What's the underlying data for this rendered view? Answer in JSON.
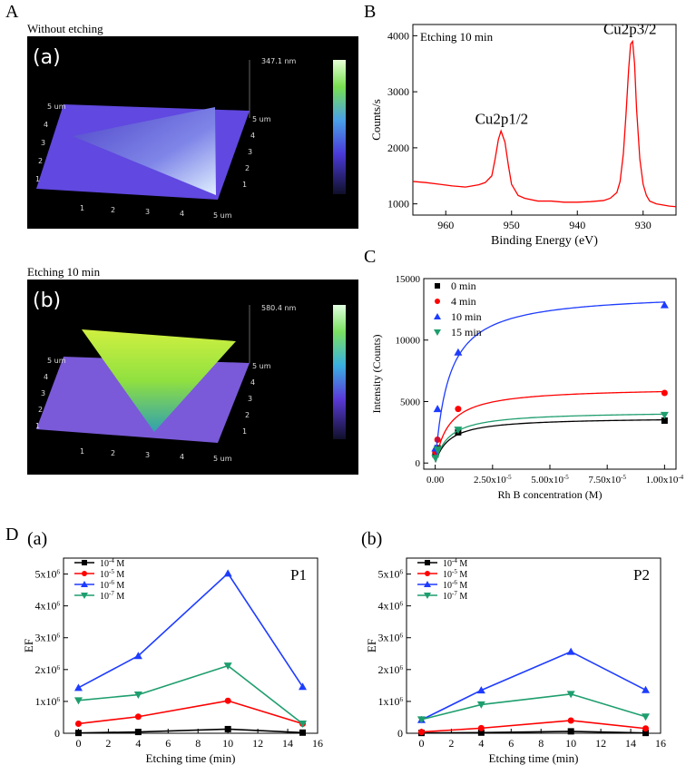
{
  "panel_letters": [
    "A",
    "B",
    "C",
    "D"
  ],
  "afm": [
    {
      "caption": "Without etching",
      "tag": "(a)",
      "height_label": "347.1 nm",
      "axis_unit": "um",
      "x_ticks": [
        "1",
        "2",
        "3",
        "4",
        "5 um"
      ],
      "y_ticks": [
        "5 um",
        "4",
        "3",
        "2",
        "1"
      ],
      "right_ticks": [
        "5 um",
        "4",
        "3",
        "2",
        "1",
        "5 um"
      ],
      "colors": {
        "base": "#5a4fd8",
        "mid": "#6a6ff0",
        "peak": "#d8f0b0"
      }
    },
    {
      "caption": "Etching 10 min",
      "tag": "(b)",
      "height_label": "580.4 nm",
      "axis_unit": "um",
      "x_ticks": [
        "1",
        "2",
        "3",
        "4",
        "5 um"
      ],
      "y_ticks": [
        "5 um",
        "4",
        "3",
        "2",
        "1"
      ],
      "right_ticks": [
        "5 um",
        "4",
        "3",
        "2",
        "1",
        "5 um"
      ],
      "colors": {
        "base": "#5a4fd8",
        "mid": "#3ec8a0",
        "peak": "#b8e830"
      }
    }
  ],
  "chart_data": [
    {
      "id": "B",
      "type": "line",
      "annotation": "Etching 10 min",
      "xlabel": "Binding Energy (eV)",
      "ylabel": "Counts/s",
      "xlim": [
        965,
        925
      ],
      "ylim": [
        800,
        4200
      ],
      "x_ticks": [
        960,
        950,
        940,
        930
      ],
      "y_ticks": [
        1000,
        2000,
        3000,
        4000
      ],
      "peak_labels": [
        {
          "text": "Cu2p1/2",
          "x": 951.5,
          "y": 2300
        },
        {
          "text": "Cu2p3/2",
          "x": 932,
          "y": 3900
        }
      ],
      "series": [
        {
          "color": "#ff0000",
          "x": [
            965,
            963,
            961,
            959,
            957,
            955,
            954,
            953,
            952.5,
            952,
            951.6,
            951,
            950.5,
            950,
            949,
            948,
            946,
            944,
            942,
            940,
            938,
            936,
            935,
            934,
            933.5,
            933,
            932.6,
            932.2,
            931.9,
            931.6,
            931.3,
            931,
            930.5,
            930,
            929.5,
            929,
            928,
            927,
            926,
            925
          ],
          "y": [
            1400,
            1380,
            1350,
            1320,
            1300,
            1340,
            1380,
            1500,
            1800,
            2150,
            2300,
            2100,
            1700,
            1350,
            1150,
            1100,
            1050,
            1050,
            1030,
            1030,
            1040,
            1060,
            1100,
            1200,
            1400,
            1900,
            2600,
            3400,
            3850,
            3900,
            3500,
            2700,
            1800,
            1350,
            1150,
            1050,
            1000,
            980,
            960,
            950
          ]
        }
      ]
    },
    {
      "id": "C",
      "type": "scatter",
      "xlabel": "Rh B concentration (M)",
      "ylabel": "Intensity (Counts)",
      "xlim": [
        -5e-06,
        0.000105
      ],
      "ylim": [
        -500,
        15000
      ],
      "x_ticks": [
        0,
        2.5e-05,
        5e-05,
        7.5e-05,
        0.0001
      ],
      "x_tick_labels": [
        "0.00",
        "2.50x10-5",
        "5.00x10-5",
        "7.50x10-5",
        "1.00x10-4"
      ],
      "y_ticks": [
        0,
        5000,
        10000,
        15000
      ],
      "legend_position": "top-left",
      "x": [
        1e-07,
        1e-06,
        1e-05,
        0.0001
      ],
      "series": [
        {
          "name": "0 min",
          "color": "#000000",
          "marker": "square",
          "values": [
            700,
            1200,
            2500,
            3450
          ]
        },
        {
          "name": "4 min",
          "color": "#ff0000",
          "marker": "circle",
          "values": [
            900,
            1900,
            4400,
            5700
          ]
        },
        {
          "name": "10 min",
          "color": "#1e3cff",
          "marker": "triangle-up",
          "values": [
            1200,
            4400,
            9000,
            12850
          ]
        },
        {
          "name": "15 min",
          "color": "#1e9e6e",
          "marker": "triangle-down",
          "values": [
            400,
            1100,
            2700,
            3900
          ]
        }
      ]
    },
    {
      "id": "D(a)",
      "tag": "(a)",
      "type": "line",
      "annotation": "P1",
      "xlabel": "Etching time (min)",
      "ylabel": "EF",
      "xlim": [
        -1,
        16
      ],
      "ylim": [
        0,
        5500000
      ],
      "x_ticks": [
        0,
        2,
        4,
        6,
        8,
        10,
        12,
        14,
        16
      ],
      "y_ticks": [
        0,
        1000000,
        2000000,
        3000000,
        4000000,
        5000000
      ],
      "y_tick_labels": [
        "0",
        "1x106",
        "2x106",
        "3x106",
        "4x106",
        "5x106"
      ],
      "legend_position": "top-left",
      "x": [
        0,
        4,
        10,
        15
      ],
      "series": [
        {
          "name": "10-4 M",
          "color": "#000000",
          "marker": "square",
          "values": [
            10000,
            40000,
            130000,
            20000
          ]
        },
        {
          "name": "10-5 M",
          "color": "#ff0000",
          "marker": "circle",
          "values": [
            300000,
            520000,
            1020000,
            300000
          ]
        },
        {
          "name": "10-6 M",
          "color": "#1e3cff",
          "marker": "triangle-up",
          "values": [
            1430000,
            2430000,
            5020000,
            1460000
          ]
        },
        {
          "name": "10-7 M",
          "color": "#1e9e6e",
          "marker": "triangle-down",
          "values": [
            1030000,
            1210000,
            2120000,
            300000
          ]
        }
      ]
    },
    {
      "id": "D(b)",
      "tag": "(b)",
      "type": "line",
      "annotation": "P2",
      "xlabel": "Etching time (min)",
      "ylabel": "EF",
      "xlim": [
        -1,
        16
      ],
      "ylim": [
        0,
        5500000
      ],
      "x_ticks": [
        0,
        2,
        4,
        6,
        8,
        10,
        12,
        14,
        16
      ],
      "y_ticks": [
        0,
        1000000,
        2000000,
        3000000,
        4000000,
        5000000
      ],
      "y_tick_labels": [
        "0",
        "1x106",
        "2x106",
        "3x106",
        "4x106",
        "5x106"
      ],
      "legend_position": "top-left",
      "x": [
        0,
        4,
        10,
        15
      ],
      "series": [
        {
          "name": "10-4 M",
          "color": "#000000",
          "marker": "square",
          "values": [
            10000,
            20000,
            60000,
            10000
          ]
        },
        {
          "name": "10-5 M",
          "color": "#ff0000",
          "marker": "circle",
          "values": [
            40000,
            160000,
            400000,
            150000
          ]
        },
        {
          "name": "10-6 M",
          "color": "#1e3cff",
          "marker": "triangle-up",
          "values": [
            420000,
            1350000,
            2560000,
            1360000
          ]
        },
        {
          "name": "10-7 M",
          "color": "#1e9e6e",
          "marker": "triangle-down",
          "values": [
            430000,
            900000,
            1230000,
            520000
          ]
        }
      ]
    }
  ]
}
